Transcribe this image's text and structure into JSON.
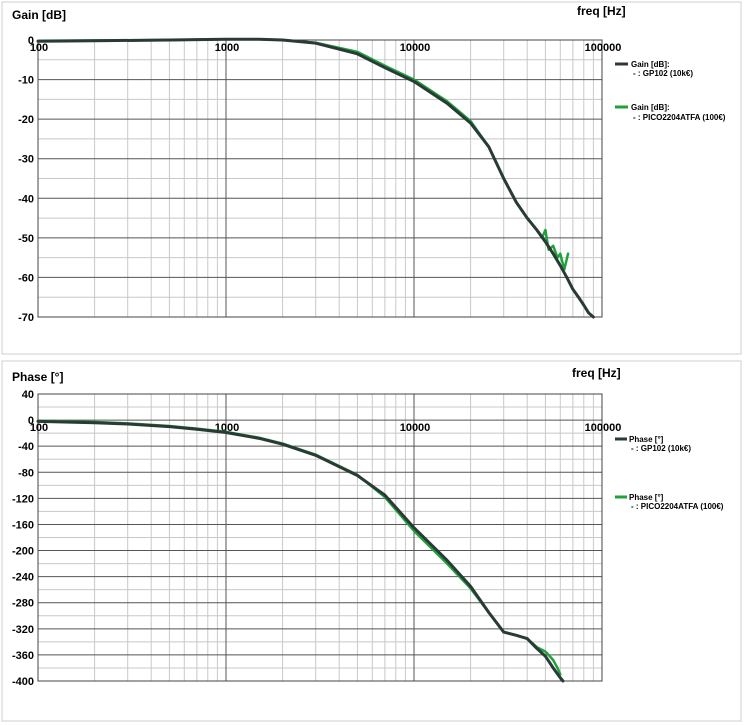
{
  "colors": {
    "reference": "#2a3a36",
    "pico": "#1fa23a",
    "grid_major": "#555555",
    "grid_minor": "#c8c8c8"
  },
  "chart_data": [
    {
      "type": "line",
      "title": "",
      "ylabel": "Gain [dB]",
      "xlabel": "freq [Hz]",
      "xscale": "log",
      "xlim": [
        100,
        100000
      ],
      "ylim": [
        -70,
        0
      ],
      "x_tick_labels": [
        "100",
        "1000",
        "10000",
        "100000"
      ],
      "y_ticks": [
        0,
        -10,
        -20,
        -30,
        -40,
        -50,
        -60,
        -70
      ],
      "grid": true,
      "legend": "right",
      "series": [
        {
          "name": "Gain [dB]:",
          "sub": "- : GP102 (10k€)",
          "color": "#2a3a36",
          "points": [
            [
              100,
              -0.3
            ],
            [
              200,
              -0.2
            ],
            [
              500,
              0
            ],
            [
              1000,
              0.2
            ],
            [
              1500,
              0.2
            ],
            [
              2000,
              0
            ],
            [
              3000,
              -0.8
            ],
            [
              5000,
              -3.5
            ],
            [
              7000,
              -7
            ],
            [
              10000,
              -10.5
            ],
            [
              15000,
              -16
            ],
            [
              20000,
              -21
            ],
            [
              25000,
              -27
            ],
            [
              30000,
              -35
            ],
            [
              35000,
              -41
            ],
            [
              40000,
              -45
            ],
            [
              45000,
              -48
            ],
            [
              50000,
              -51
            ],
            [
              55000,
              -54
            ],
            [
              60000,
              -57
            ],
            [
              65000,
              -60
            ],
            [
              70000,
              -63
            ],
            [
              75000,
              -65
            ],
            [
              80000,
              -67
            ],
            [
              85000,
              -69
            ],
            [
              90000,
              -70
            ]
          ]
        },
        {
          "name": "Gain [dB]:",
          "sub": "- : PICO2204ATFA (100€)",
          "color": "#1fa23a",
          "points": [
            [
              100,
              -0.2
            ],
            [
              200,
              -0.1
            ],
            [
              500,
              0
            ],
            [
              1000,
              0.2
            ],
            [
              1500,
              0.2
            ],
            [
              2000,
              0
            ],
            [
              3000,
              -0.7
            ],
            [
              5000,
              -3
            ],
            [
              7000,
              -6.5
            ],
            [
              10000,
              -10
            ],
            [
              15000,
              -15.5
            ],
            [
              20000,
              -20.5
            ],
            [
              25000,
              -27
            ],
            [
              30000,
              -35
            ],
            [
              35000,
              -41
            ],
            [
              40000,
              -45
            ],
            [
              45000,
              -48
            ],
            [
              48000,
              -50
            ],
            [
              50000,
              -48
            ],
            [
              52000,
              -53
            ],
            [
              55000,
              -52
            ],
            [
              58000,
              -55
            ],
            [
              60000,
              -54
            ],
            [
              63000,
              -58
            ],
            [
              66000,
              -54
            ]
          ]
        }
      ]
    },
    {
      "type": "line",
      "title": "",
      "ylabel": "Phase [°]",
      "xlabel": "freq [Hz]",
      "xscale": "log",
      "xlim": [
        100,
        100000
      ],
      "ylim": [
        -400,
        40
      ],
      "x_tick_labels": [
        "100",
        "1000",
        "10000",
        "100000"
      ],
      "y_ticks": [
        40,
        0,
        -40,
        -80,
        -120,
        -160,
        -200,
        -240,
        -280,
        -320,
        -360,
        -400
      ],
      "grid": true,
      "legend": "right",
      "series": [
        {
          "name": "Phase [°]",
          "sub": "- : GP102 (10k€)",
          "color": "#2a3a36",
          "points": [
            [
              100,
              -2
            ],
            [
              200,
              -4
            ],
            [
              300,
              -6
            ],
            [
              500,
              -10
            ],
            [
              700,
              -14
            ],
            [
              1000,
              -19
            ],
            [
              1500,
              -28
            ],
            [
              2000,
              -37
            ],
            [
              3000,
              -54
            ],
            [
              5000,
              -85
            ],
            [
              7000,
              -115
            ],
            [
              10000,
              -165
            ],
            [
              15000,
              -215
            ],
            [
              20000,
              -255
            ],
            [
              25000,
              -295
            ],
            [
              30000,
              -325
            ],
            [
              35000,
              -330
            ],
            [
              40000,
              -335
            ],
            [
              45000,
              -350
            ],
            [
              50000,
              -362
            ],
            [
              55000,
              -380
            ],
            [
              60000,
              -395
            ],
            [
              62000,
              -400
            ]
          ]
        },
        {
          "name": "Phase [°]",
          "sub": "- : PICO2204ATFA (100€)",
          "color": "#1fa23a",
          "points": [
            [
              100,
              -1
            ],
            [
              200,
              -3
            ],
            [
              300,
              -5
            ],
            [
              500,
              -9
            ],
            [
              700,
              -13
            ],
            [
              1000,
              -18
            ],
            [
              1500,
              -27
            ],
            [
              2000,
              -36
            ],
            [
              3000,
              -53
            ],
            [
              5000,
              -84
            ],
            [
              7000,
              -118
            ],
            [
              10000,
              -170
            ],
            [
              15000,
              -220
            ],
            [
              20000,
              -258
            ],
            [
              25000,
              -295
            ],
            [
              30000,
              -325
            ],
            [
              35000,
              -330
            ],
            [
              40000,
              -335
            ],
            [
              45000,
              -348
            ],
            [
              50000,
              -355
            ],
            [
              52000,
              -360
            ],
            [
              55000,
              -368
            ],
            [
              58000,
              -380
            ],
            [
              60000,
              -390
            ]
          ]
        }
      ]
    }
  ]
}
